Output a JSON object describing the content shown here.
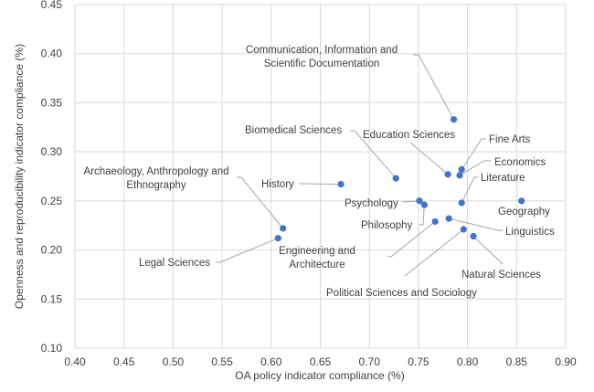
{
  "chart_data": {
    "type": "scatter",
    "title": "",
    "xlabel": "OA policy indicator compliance (%)",
    "ylabel": "Openness and reproducibility indicator compliance (%)",
    "xlim": [
      0.4,
      0.9
    ],
    "ylim": [
      0.1,
      0.45
    ],
    "x_ticks": [
      "0.40",
      "0.45",
      "0.50",
      "0.55",
      "0.60",
      "0.65",
      "0.70",
      "0.75",
      "0.80",
      "0.85",
      "0.90"
    ],
    "y_ticks": [
      "0.10",
      "0.15",
      "0.20",
      "0.25",
      "0.30",
      "0.35",
      "0.40",
      "0.45"
    ],
    "grid": true,
    "legend": "none",
    "marker_color": "#4472C4",
    "points": [
      {
        "label": "Communication, Information and Scientific Documentation",
        "x": 0.786,
        "y": 0.333
      },
      {
        "label": "Biomedical Sciences",
        "x": 0.727,
        "y": 0.273
      },
      {
        "label": "Education Sciences",
        "x": 0.78,
        "y": 0.277
      },
      {
        "label": "Fine Arts",
        "x": 0.794,
        "y": 0.282
      },
      {
        "label": "Economics",
        "x": 0.792,
        "y": 0.276
      },
      {
        "label": "Literature",
        "x": 0.794,
        "y": 0.248
      },
      {
        "label": "History",
        "x": 0.671,
        "y": 0.267
      },
      {
        "label": "Archaeology, Anthropology and Ethnography",
        "x": 0.612,
        "y": 0.222
      },
      {
        "label": "Legal Sciences",
        "x": 0.607,
        "y": 0.212
      },
      {
        "label": "Psychology",
        "x": 0.751,
        "y": 0.25
      },
      {
        "label": "Philosophy",
        "x": 0.756,
        "y": 0.246
      },
      {
        "label": "Engineering and Architecture",
        "x": 0.767,
        "y": 0.229
      },
      {
        "label": "Linguistics",
        "x": 0.781,
        "y": 0.232
      },
      {
        "label": "Political Sciences and Sociology",
        "x": 0.796,
        "y": 0.221
      },
      {
        "label": "Natural Sciences",
        "x": 0.806,
        "y": 0.214
      },
      {
        "label": "Geography",
        "x": 0.855,
        "y": 0.25
      }
    ]
  }
}
